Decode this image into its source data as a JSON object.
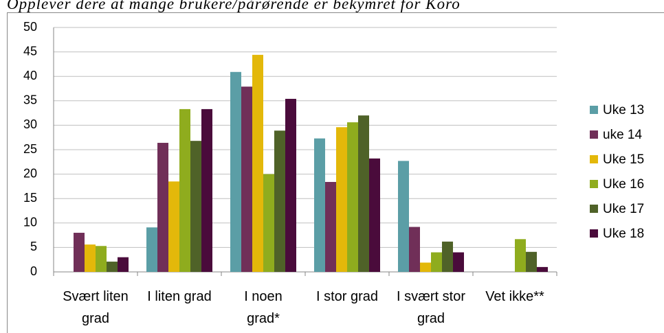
{
  "chart_data": {
    "type": "bar",
    "title": "Opplever dere at mange brukere/pårørende er bekymret for Koro",
    "categories": [
      "Svært liten grad",
      "I liten grad",
      "I noen grad*",
      "I stor grad",
      "I svært stor grad",
      "Vet ikke**"
    ],
    "series": [
      {
        "name": "Uke 13",
        "color": "#5b9ea6",
        "values": [
          0,
          9.1,
          40.9,
          27.3,
          22.7,
          0
        ]
      },
      {
        "name": "uke 14",
        "color": "#702f58",
        "values": [
          8,
          26.4,
          37.9,
          18.4,
          9.2,
          0
        ]
      },
      {
        "name": "Uke 15",
        "color": "#e3b80a",
        "values": [
          5.6,
          18.5,
          44.4,
          29.6,
          1.9,
          0
        ]
      },
      {
        "name": "Uke 16",
        "color": "#8fac1e",
        "values": [
          5.3,
          33.3,
          20,
          30.6,
          4,
          6.7
        ]
      },
      {
        "name": "Uke 17",
        "color": "#4f6228",
        "values": [
          2.1,
          26.8,
          28.9,
          32,
          6.2,
          4.1
        ]
      },
      {
        "name": "Uke 18",
        "color": "#4a0b3b",
        "values": [
          3,
          33.3,
          35.4,
          23.2,
          4,
          1
        ]
      }
    ],
    "ylim": [
      0,
      50
    ],
    "yticks": [
      0,
      5,
      10,
      15,
      20,
      25,
      30,
      35,
      40,
      45,
      50
    ],
    "grid": true,
    "legend": "right"
  }
}
